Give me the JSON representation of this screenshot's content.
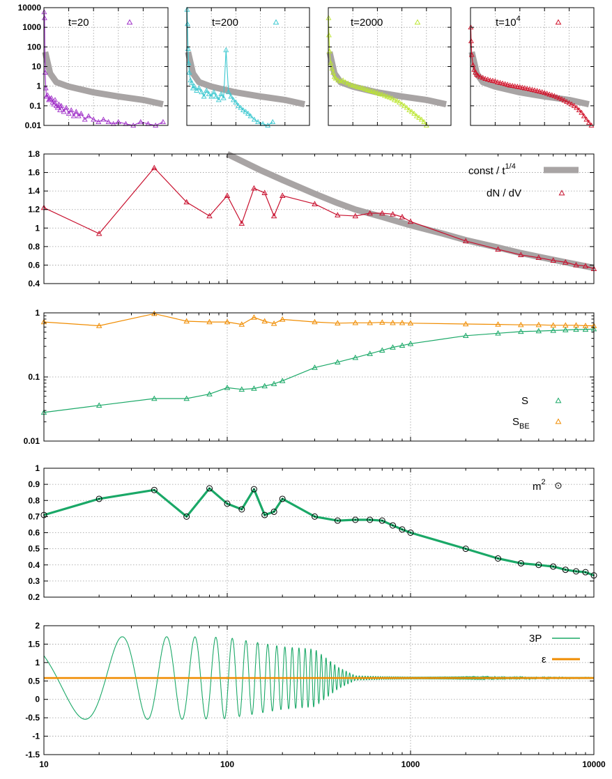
{
  "chart_data": [
    {
      "id": "inset-t20",
      "type": "scatter",
      "label": "t=20",
      "yscale": "log",
      "ylim": [
        0.01,
        10000
      ],
      "ytick_labels": [
        "0.01",
        "0.1",
        "1",
        "10",
        "100",
        "1000",
        "10000"
      ],
      "color": "#a030c8",
      "series": [
        {
          "name": "t=20",
          "x": [
            0.2,
            0.5,
            1,
            1.5,
            2,
            3,
            4,
            5,
            6,
            7,
            8,
            9,
            10,
            11,
            12,
            13,
            14,
            16,
            18,
            20,
            22,
            24,
            26,
            28,
            30,
            33,
            36,
            40,
            44,
            48,
            52,
            56,
            60,
            66,
            72,
            78,
            84,
            90,
            96
          ],
          "y": [
            6000,
            3000,
            5,
            0.8,
            0.3,
            0.35,
            0.2,
            0.22,
            0.25,
            0.15,
            0.12,
            0.2,
            0.1,
            0.08,
            0.12,
            0.06,
            0.1,
            0.05,
            0.08,
            0.04,
            0.06,
            0.03,
            0.05,
            0.03,
            0.04,
            0.02,
            0.03,
            0.02,
            0.015,
            0.02,
            0.015,
            0.012,
            0.015,
            0.012,
            0.01,
            0.015,
            0.012,
            0.01,
            0.015
          ]
        },
        {
          "name": "reference",
          "x": [
            1,
            5,
            10,
            20,
            40,
            60,
            80,
            96
          ],
          "y": [
            55,
            4.5,
            1.6,
            0.95,
            0.48,
            0.3,
            0.2,
            0.12
          ]
        }
      ]
    },
    {
      "id": "inset-t200",
      "type": "scatter",
      "label": "t=200",
      "yscale": "log",
      "ylim": [
        0.01,
        10000
      ],
      "color": "#3cc8d0",
      "series": [
        {
          "name": "t=200",
          "x": [
            0.2,
            0.5,
            1,
            1.5,
            2,
            3,
            4,
            5,
            6,
            8,
            10,
            12,
            14,
            16,
            18,
            20,
            22,
            24,
            26,
            28,
            30,
            32,
            34,
            36,
            38,
            40,
            42,
            44,
            46,
            48,
            50,
            52,
            55,
            58,
            62,
            66,
            70
          ],
          "y": [
            8000,
            1500,
            80,
            15,
            5,
            2,
            1.5,
            0.8,
            1,
            0.6,
            0.8,
            0.5,
            0.3,
            0.6,
            0.4,
            0.3,
            0.5,
            0.3,
            0.2,
            0.4,
            0.25,
            70,
            0.5,
            0.3,
            0.2,
            0.15,
            0.1,
            0.08,
            0.06,
            0.05,
            0.04,
            0.03,
            0.02,
            0.015,
            0.012,
            0.01,
            0.015
          ]
        },
        {
          "name": "reference",
          "x": [
            1,
            5,
            10,
            20,
            40,
            60,
            80,
            96
          ],
          "y": [
            55,
            4.5,
            1.6,
            0.95,
            0.48,
            0.3,
            0.2,
            0.12
          ]
        }
      ]
    },
    {
      "id": "inset-t2000",
      "type": "scatter",
      "label": "t=2000",
      "yscale": "log",
      "ylim": [
        0.01,
        10000
      ],
      "color": "#bce632",
      "series": [
        {
          "name": "t=2000",
          "x": [
            0.2,
            0.5,
            1,
            2,
            3,
            4,
            5,
            6,
            8,
            10,
            12,
            14,
            16,
            18,
            20,
            22,
            24,
            26,
            28,
            30,
            32,
            34,
            36,
            38,
            40,
            42,
            44,
            46,
            48,
            50,
            52,
            54,
            56,
            58,
            60,
            62,
            64,
            66,
            68,
            70,
            72,
            74,
            76,
            78,
            80
          ],
          "y": [
            3000,
            400,
            60,
            15,
            8,
            5,
            3,
            2.5,
            2,
            1.8,
            2,
            1.6,
            1.4,
            1.2,
            1.1,
            1,
            0.9,
            0.85,
            0.8,
            0.7,
            0.65,
            0.6,
            0.55,
            0.5,
            0.45,
            0.4,
            0.38,
            0.33,
            0.3,
            0.27,
            0.24,
            0.2,
            0.18,
            0.15,
            0.12,
            0.1,
            0.08,
            0.06,
            0.05,
            0.04,
            0.03,
            0.025,
            0.02,
            0.015,
            0.01
          ]
        },
        {
          "name": "reference",
          "x": [
            1,
            5,
            10,
            20,
            40,
            60,
            80,
            96
          ],
          "y": [
            55,
            4.5,
            1.6,
            0.95,
            0.48,
            0.3,
            0.2,
            0.12
          ]
        }
      ]
    },
    {
      "id": "inset-t1e4",
      "type": "scatter",
      "label": "t=10^4",
      "yscale": "log",
      "ylim": [
        0.01,
        10000
      ],
      "color": "#d01028",
      "series": [
        {
          "name": "t=10^4",
          "x": [
            0.2,
            0.5,
            1,
            2,
            3,
            4,
            5,
            6,
            8,
            10,
            12,
            14,
            16,
            18,
            20,
            22,
            24,
            26,
            28,
            30,
            32,
            34,
            36,
            38,
            40,
            42,
            44,
            46,
            48,
            50,
            52,
            54,
            56,
            58,
            60,
            62,
            64,
            66,
            68,
            70,
            72,
            74,
            76,
            78,
            80,
            82,
            84,
            86,
            88,
            90,
            92,
            94,
            96,
            98
          ],
          "y": [
            1000,
            200,
            40,
            12,
            7,
            5,
            4,
            3.5,
            3,
            2.7,
            2.4,
            2.2,
            2,
            1.9,
            1.8,
            1.6,
            1.5,
            1.4,
            1.3,
            1.2,
            1.1,
            1.05,
            1,
            0.95,
            0.9,
            0.85,
            0.8,
            0.75,
            0.7,
            0.66,
            0.62,
            0.58,
            0.54,
            0.5,
            0.46,
            0.42,
            0.38,
            0.35,
            0.32,
            0.28,
            0.25,
            0.22,
            0.19,
            0.16,
            0.14,
            0.12,
            0.1,
            0.08,
            0.06,
            0.045,
            0.03,
            0.02,
            0.014,
            0.01
          ]
        },
        {
          "name": "reference",
          "x": [
            1,
            5,
            10,
            20,
            40,
            60,
            80,
            96
          ],
          "y": [
            55,
            4.5,
            1.6,
            0.95,
            0.48,
            0.3,
            0.2,
            0.12
          ]
        }
      ]
    },
    {
      "id": "panel-dndv",
      "type": "line",
      "xscale": "log",
      "xlim": [
        10,
        10000
      ],
      "yscale": "linear",
      "ylim": [
        0.4,
        1.8
      ],
      "yticks": [
        0.4,
        0.6,
        0.8,
        1,
        1.2,
        1.4,
        1.6,
        1.8
      ],
      "ytick_labels": [
        "0.4",
        "0.6",
        "0.8",
        "1",
        "1.2",
        "1.4",
        "1.6",
        "1.8"
      ],
      "legend_position": "top-right",
      "series": [
        {
          "name": "const / t^1/4",
          "color": "#a8a4a4",
          "x": [
            100,
            150,
            200,
            300,
            400,
            500,
            700,
            1000,
            1500,
            2000,
            3000,
            4000,
            5000,
            7000,
            10000
          ],
          "y": [
            1.8,
            1.63,
            1.52,
            1.37,
            1.27,
            1.2,
            1.12,
            1.03,
            0.94,
            0.87,
            0.79,
            0.73,
            0.69,
            0.63,
            0.57
          ]
        },
        {
          "name": "dN / dV",
          "color": "#c8102e",
          "x": [
            10,
            20,
            40,
            60,
            80,
            100,
            120,
            140,
            160,
            180,
            200,
            300,
            400,
            500,
            600,
            700,
            800,
            900,
            1000,
            2000,
            3000,
            4000,
            5000,
            6000,
            7000,
            8000,
            9000,
            10000
          ],
          "y": [
            1.22,
            0.94,
            1.65,
            1.28,
            1.13,
            1.35,
            1.05,
            1.43,
            1.38,
            1.13,
            1.35,
            1.26,
            1.14,
            1.13,
            1.16,
            1.16,
            1.15,
            1.12,
            1.07,
            0.86,
            0.77,
            0.71,
            0.68,
            0.65,
            0.63,
            0.6,
            0.59,
            0.56
          ]
        }
      ]
    },
    {
      "id": "panel-entropy",
      "type": "line",
      "xscale": "log",
      "xlim": [
        10,
        10000
      ],
      "yscale": "log",
      "ylim": [
        0.01,
        1
      ],
      "ytick_labels": [
        "0.01",
        "0.1",
        "1"
      ],
      "legend_position": "bottom-right",
      "series": [
        {
          "name": "S",
          "color": "#1aa867",
          "x": [
            10,
            20,
            40,
            60,
            80,
            100,
            120,
            140,
            160,
            180,
            200,
            300,
            400,
            500,
            600,
            700,
            800,
            900,
            1000,
            2000,
            3000,
            4000,
            5000,
            6000,
            7000,
            8000,
            9000,
            10000
          ],
          "y": [
            0.028,
            0.036,
            0.046,
            0.046,
            0.054,
            0.068,
            0.064,
            0.066,
            0.072,
            0.078,
            0.087,
            0.14,
            0.17,
            0.2,
            0.23,
            0.26,
            0.29,
            0.31,
            0.33,
            0.44,
            0.48,
            0.51,
            0.52,
            0.53,
            0.54,
            0.55,
            0.55,
            0.56
          ]
        },
        {
          "name": "S_BE",
          "color": "#f08c00",
          "x": [
            10,
            20,
            40,
            60,
            80,
            100,
            120,
            140,
            160,
            180,
            200,
            300,
            400,
            500,
            600,
            700,
            800,
            900,
            1000,
            2000,
            3000,
            4000,
            5000,
            6000,
            7000,
            8000,
            9000,
            10000
          ],
          "y": [
            0.72,
            0.63,
            0.97,
            0.74,
            0.72,
            0.72,
            0.66,
            0.85,
            0.74,
            0.68,
            0.79,
            0.72,
            0.69,
            0.7,
            0.7,
            0.71,
            0.7,
            0.7,
            0.69,
            0.67,
            0.66,
            0.65,
            0.65,
            0.64,
            0.64,
            0.64,
            0.63,
            0.63
          ]
        }
      ]
    },
    {
      "id": "panel-m2",
      "type": "line",
      "xscale": "log",
      "xlim": [
        10,
        10000
      ],
      "yscale": "linear",
      "ylim": [
        0.2,
        1
      ],
      "yticks": [
        0.2,
        0.3,
        0.4,
        0.5,
        0.6,
        0.7,
        0.8,
        0.9,
        1
      ],
      "ytick_labels": [
        "0.2",
        "0.3",
        "0.4",
        "0.5",
        "0.6",
        "0.7",
        "0.8",
        "0.9",
        "1"
      ],
      "legend_position": "top-right",
      "series": [
        {
          "name": "m^2",
          "color": "#1aa867",
          "marker_color": "#000000",
          "x": [
            10,
            20,
            40,
            60,
            80,
            100,
            120,
            140,
            160,
            180,
            200,
            300,
            400,
            500,
            600,
            700,
            800,
            900,
            1000,
            2000,
            3000,
            4000,
            5000,
            6000,
            7000,
            8000,
            9000,
            10000
          ],
          "y": [
            0.71,
            0.81,
            0.865,
            0.7,
            0.875,
            0.78,
            0.745,
            0.87,
            0.71,
            0.73,
            0.81,
            0.7,
            0.675,
            0.68,
            0.68,
            0.675,
            0.645,
            0.62,
            0.6,
            0.5,
            0.44,
            0.41,
            0.4,
            0.39,
            0.37,
            0.36,
            0.355,
            0.335
          ]
        }
      ]
    },
    {
      "id": "panel-pressure",
      "type": "line",
      "xscale": "log",
      "xlim": [
        10,
        10000
      ],
      "xtick_labels": [
        "10",
        "100",
        "1000",
        "10000"
      ],
      "yscale": "linear",
      "ylim": [
        -1.5,
        2
      ],
      "yticks": [
        -1.5,
        -1,
        -0.5,
        0,
        0.5,
        1,
        1.5,
        2
      ],
      "ytick_labels": [
        "-1.5",
        "-1",
        "-0.5",
        "0",
        "0.5",
        "1",
        "1.5",
        "2"
      ],
      "legend_position": "top-right",
      "series": [
        {
          "name": "3P",
          "color": "#1aa867",
          "model": {
            "mean": 0.58,
            "amplitude_envelope": {
              "x": [
                10,
                60,
                100,
                200,
                300,
                400,
                500,
                700,
                1000,
                3000,
                10000
              ],
              "a": [
                1.12,
                1.12,
                1.1,
                0.85,
                0.78,
                0.3,
                0.06,
                0.04,
                0.03,
                0.03,
                0.025
              ]
            },
            "half_period_count_per_decade": [
              30,
              70,
              160
            ]
          }
        },
        {
          "name": "ε",
          "color": "#f08c00",
          "x": [
            10,
            10000
          ],
          "y": [
            0.58,
            0.58
          ]
        }
      ]
    }
  ],
  "legend": {
    "inset_labels": [
      "t=20",
      "t=200",
      "t=2000",
      "t=10"
    ],
    "inset_exp": "4",
    "const_label": "const / t",
    "const_exp": "1/4",
    "dndv_label": "dN / dV",
    "s_label": "S",
    "sbe_label": "S",
    "sbe_sub": "BE",
    "m2_label": "m",
    "m2_exp": "2",
    "p_label": "3P",
    "eps_label": "ε"
  }
}
